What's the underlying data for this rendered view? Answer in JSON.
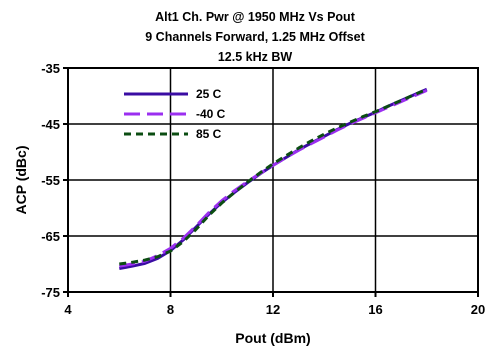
{
  "chart_data": {
    "type": "line",
    "title": [
      "Alt1 Ch. Pwr @ 1950 MHz Vs Pout",
      "9 Channels Forward, 1.25 MHz Offset",
      "12.5 kHz BW"
    ],
    "xlabel": "Pout (dBm)",
    "ylabel": "ACP (dBc)",
    "xlim": [
      4,
      20
    ],
    "ylim": [
      -75,
      -35
    ],
    "xticks": [
      4,
      8,
      12,
      16,
      20
    ],
    "yticks": [
      -35,
      -45,
      -55,
      -65,
      -75
    ],
    "grid": true,
    "legend_position": "top-left",
    "series": [
      {
        "name": "25 C",
        "color": "#3a0ca3",
        "style": "solid",
        "x": [
          6,
          6.5,
          7,
          7.5,
          8,
          8.5,
          9,
          9.5,
          10,
          10.5,
          11,
          11.5,
          12,
          12.5,
          13,
          13.5,
          14,
          14.5,
          15,
          15.5,
          16,
          16.5,
          17,
          17.5,
          18
        ],
        "y": [
          -70.8,
          -70.4,
          -69.9,
          -69.0,
          -67.6,
          -65.7,
          -63.4,
          -61.1,
          -59.0,
          -57.2,
          -55.5,
          -53.9,
          -52.4,
          -51.0,
          -49.6,
          -48.4,
          -47.2,
          -46.0,
          -44.9,
          -43.9,
          -42.9,
          -41.8,
          -40.8,
          -39.8,
          -38.8
        ]
      },
      {
        "name": "-40 C",
        "color": "#9b2ff0",
        "style": "dashed",
        "x": [
          6,
          6.5,
          7,
          7.5,
          8,
          8.5,
          9,
          9.5,
          10,
          10.5,
          11,
          11.5,
          12,
          12.5,
          13,
          13.5,
          14,
          14.5,
          15,
          15.5,
          16,
          16.5,
          17,
          17.5,
          18
        ],
        "y": [
          -70.4,
          -70.0,
          -69.5,
          -68.5,
          -67.2,
          -65.4,
          -63.2,
          -60.8,
          -58.7,
          -56.9,
          -55.3,
          -53.8,
          -52.4,
          -51.0,
          -49.7,
          -48.5,
          -47.3,
          -46.1,
          -45.0,
          -44.0,
          -43.0,
          -42.0,
          -41.0,
          -40.0,
          -39.0
        ]
      },
      {
        "name": "85 C",
        "color": "#0b4d12",
        "style": "dotted",
        "x": [
          6,
          6.5,
          7,
          7.5,
          8,
          8.5,
          9,
          9.5,
          10,
          10.5,
          11,
          11.5,
          12,
          12.5,
          13,
          13.5,
          14,
          14.5,
          15,
          15.5,
          16,
          16.5,
          17,
          17.5,
          18
        ],
        "y": [
          -70.0,
          -69.7,
          -69.3,
          -68.7,
          -67.7,
          -66.0,
          -63.8,
          -61.3,
          -59.1,
          -57.2,
          -55.4,
          -53.7,
          -52.1,
          -50.7,
          -49.3,
          -48.0,
          -46.8,
          -45.7,
          -44.7,
          -43.7,
          -42.8,
          -41.8,
          -40.8,
          -39.8,
          -38.8
        ]
      }
    ]
  }
}
